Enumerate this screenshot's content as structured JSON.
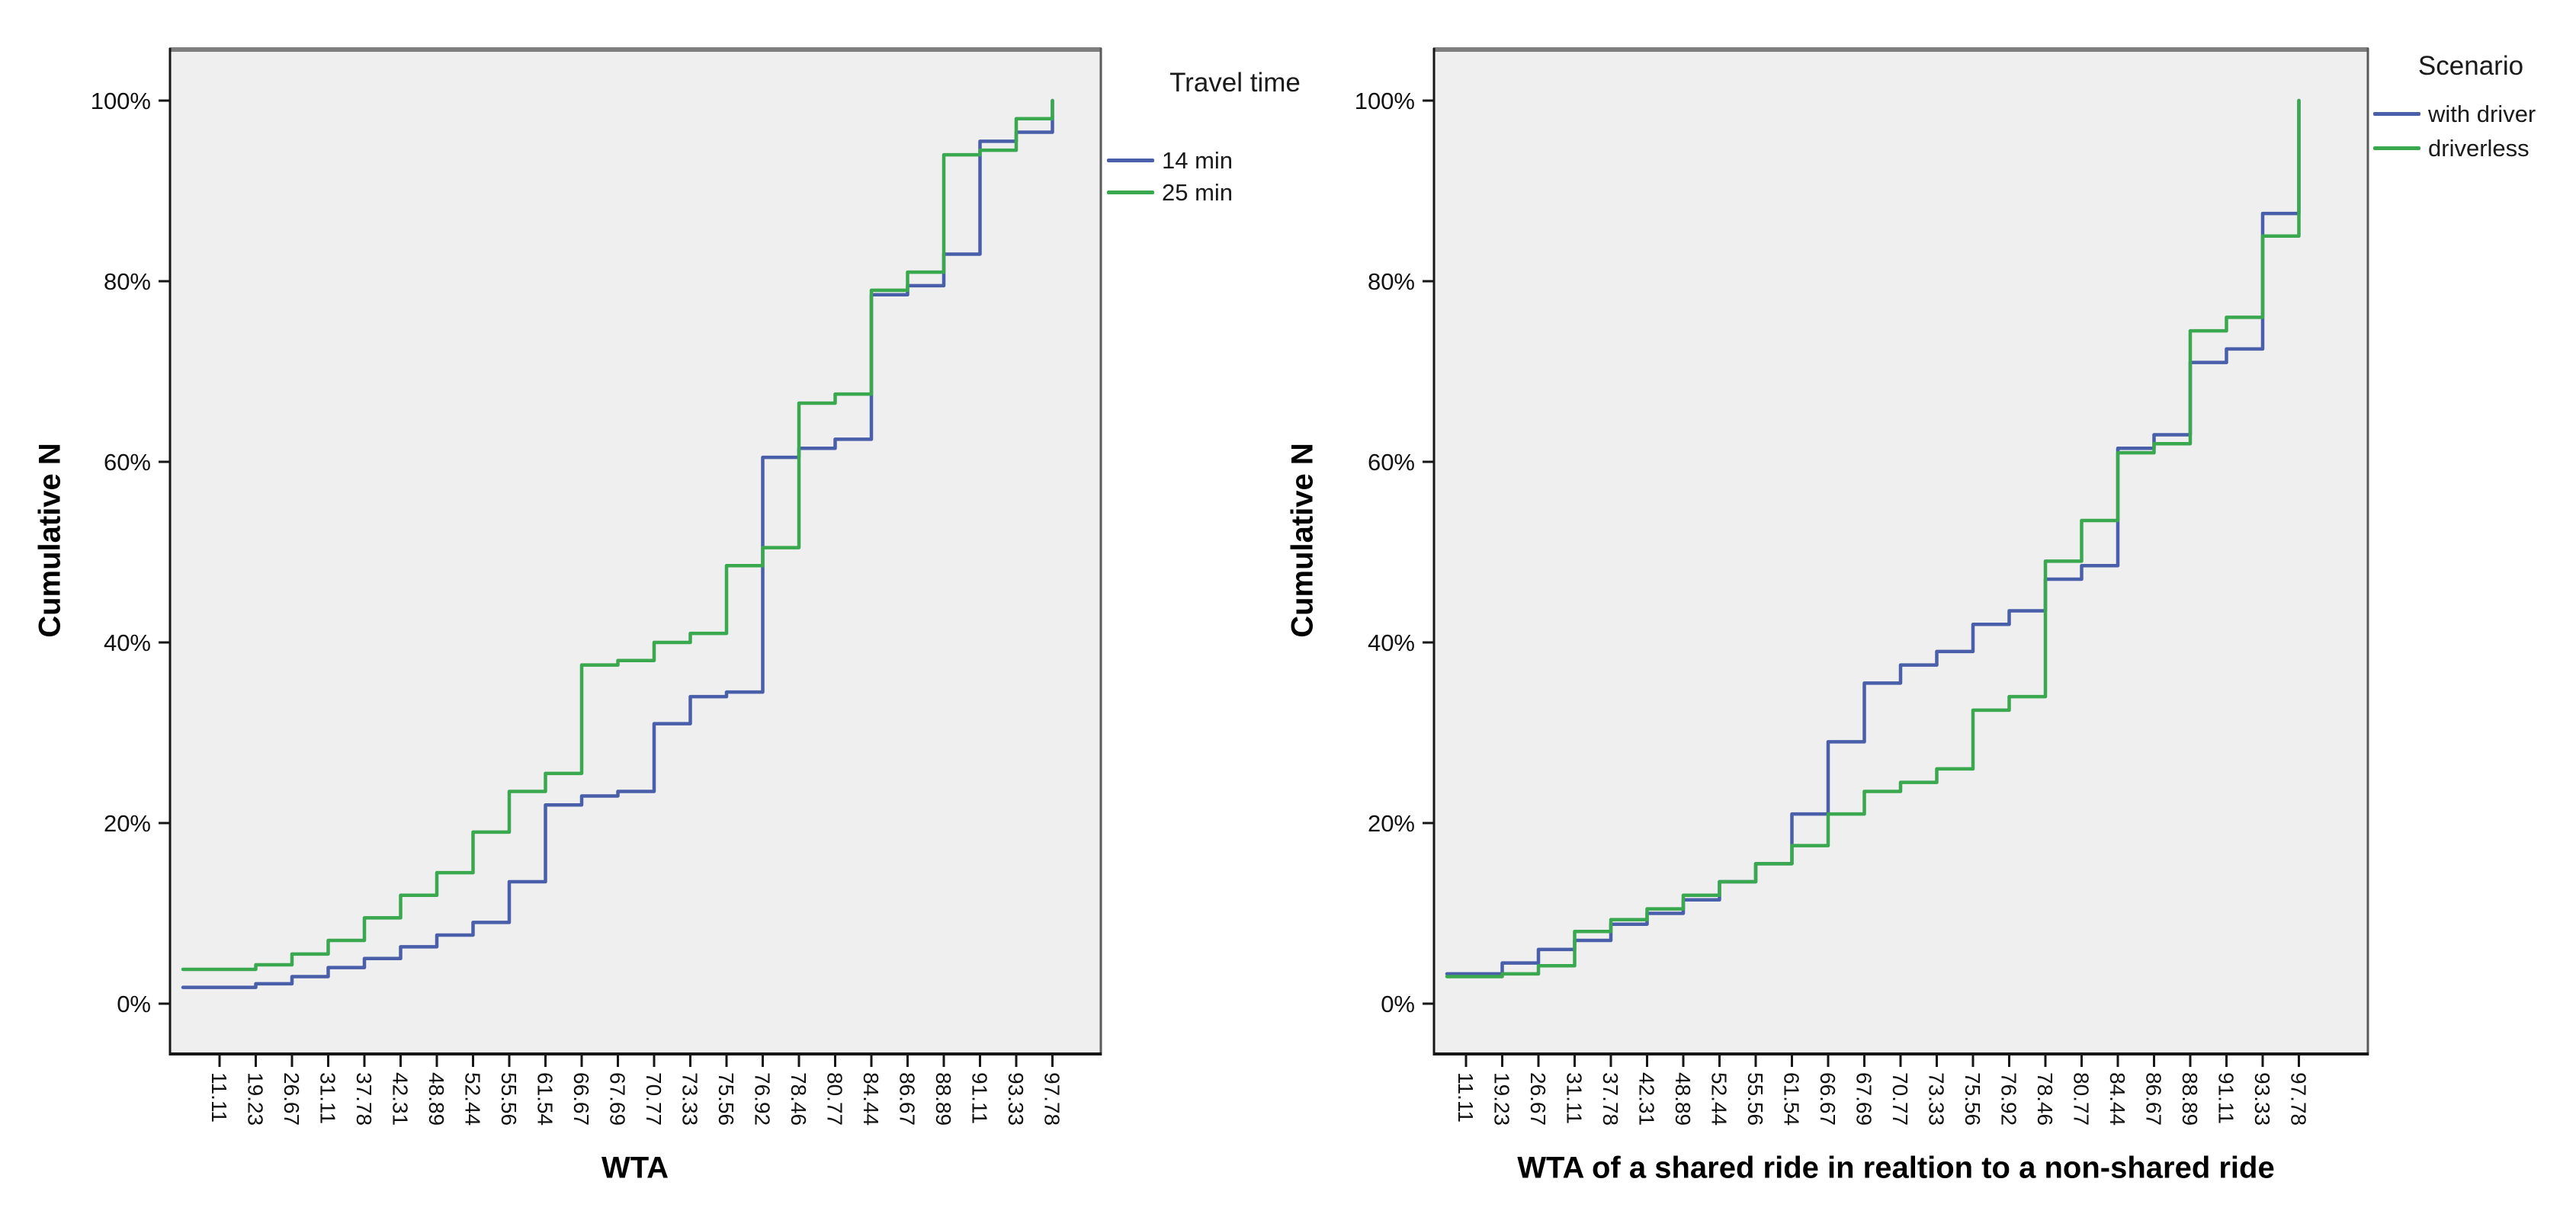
{
  "figure": {
    "background": "#ffffff",
    "plot_background": "#efefef",
    "frame_color": "#3f3f3f"
  },
  "chart_data": [
    {
      "type": "line",
      "subtype": "cumulative-step",
      "title": "",
      "xlabel": "WTA",
      "ylabel": "Cumulative N",
      "legend_title": "Travel time",
      "legend_position": "top-right-outside",
      "grid": false,
      "ylim": [
        0,
        100
      ],
      "ytick_labels": [
        "0%",
        "20%",
        "40%",
        "60%",
        "80%",
        "100%"
      ],
      "yticks": [
        0,
        20,
        40,
        60,
        80,
        100
      ],
      "categories": [
        "11.11",
        "19.23",
        "26.67",
        "31.11",
        "37.78",
        "42.31",
        "48.89",
        "52.44",
        "55.56",
        "61.54",
        "66.67",
        "67.69",
        "70.77",
        "73.33",
        "75.56",
        "76.92",
        "78.46",
        "80.77",
        "84.44",
        "86.67",
        "88.89",
        "91.11",
        "93.33",
        "97.78"
      ],
      "series": [
        {
          "name": "14 min",
          "color": "#4a5fa9",
          "values": [
            1.8,
            2.2,
            3,
            4,
            5,
            6.3,
            7.6,
            9,
            13.5,
            22,
            23,
            23.5,
            31,
            34,
            34.5,
            60.5,
            61.5,
            62.5,
            78.5,
            79.5,
            83,
            95.5,
            96.5,
            100
          ]
        },
        {
          "name": "25 min",
          "color": "#39a84e",
          "values": [
            3.8,
            4.3,
            5.5,
            7,
            9.5,
            12,
            14.5,
            19,
            23.5,
            25.5,
            37.5,
            38,
            40,
            41,
            48.5,
            50.5,
            66.5,
            67.5,
            79,
            81,
            94,
            94.5,
            98,
            100
          ]
        }
      ]
    },
    {
      "type": "line",
      "subtype": "cumulative-step",
      "title": "",
      "xlabel": "WTA of a shared ride in realtion to a non-shared ride",
      "ylabel": "Cumulative N",
      "legend_title": "Scenario",
      "legend_position": "top-right-outside",
      "grid": false,
      "ylim": [
        0,
        100
      ],
      "ytick_labels": [
        "0%",
        "20%",
        "40%",
        "60%",
        "80%",
        "100%"
      ],
      "yticks": [
        0,
        20,
        40,
        60,
        80,
        100
      ],
      "categories": [
        "11.11",
        "19.23",
        "26.67",
        "31.11",
        "37.78",
        "42.31",
        "48.89",
        "52.44",
        "55.56",
        "61.54",
        "66.67",
        "67.69",
        "70.77",
        "73.33",
        "75.56",
        "76.92",
        "78.46",
        "80.77",
        "84.44",
        "86.67",
        "88.89",
        "91.11",
        "93.33",
        "97.78"
      ],
      "series": [
        {
          "name": "with driver",
          "color": "#4a5fa9",
          "values": [
            3.3,
            4.5,
            6,
            7,
            8.8,
            10,
            11.5,
            13.5,
            15.5,
            21,
            29,
            35.5,
            37.5,
            39,
            42,
            43.5,
            47,
            48.5,
            61.5,
            63,
            71,
            72.5,
            87.5,
            100
          ]
        },
        {
          "name": "driverless",
          "color": "#39a84e",
          "values": [
            3,
            3.3,
            4.2,
            8,
            9.3,
            10.5,
            12,
            13.5,
            15.5,
            17.5,
            21,
            23.5,
            24.5,
            26,
            32.5,
            34,
            49,
            53.5,
            61,
            62,
            74.5,
            76,
            85,
            100
          ]
        }
      ]
    }
  ]
}
